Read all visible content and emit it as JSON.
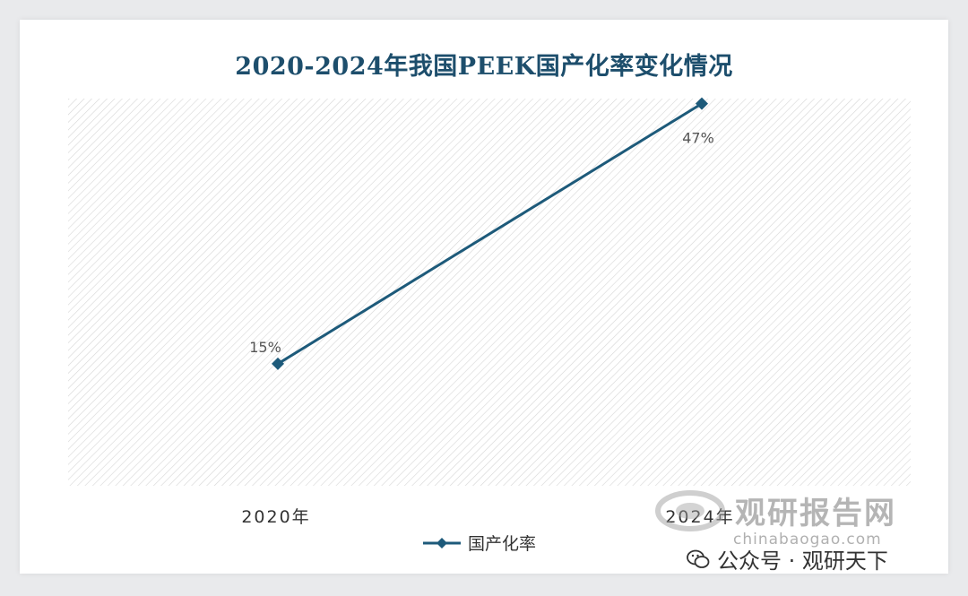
{
  "chart_data": {
    "type": "line",
    "title": "2020-2024年我国PEEK国产化率变化情况",
    "categories": [
      "2020年",
      "2024年"
    ],
    "series": [
      {
        "name": "国产化率",
        "values": [
          15,
          47
        ],
        "data_labels": [
          "15%",
          "47%"
        ],
        "color": "#1d5a7a"
      }
    ],
    "ylim": [
      0,
      50
    ],
    "grid": false,
    "legend": "bottom"
  },
  "watermark": {
    "brand": "观研报告网",
    "url": "chinabaogao.com",
    "account": "公众号 · 观研天下",
    "icon": "wechat-icon"
  },
  "colors": {
    "title": "#1d4e6c",
    "series": "#1d5a7a",
    "hatch": "#d6d6d6"
  }
}
